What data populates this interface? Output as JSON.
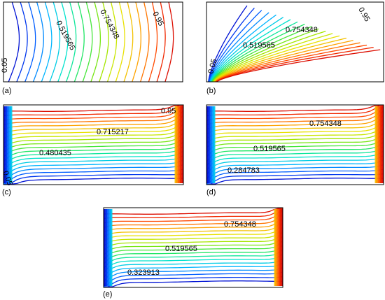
{
  "figure": {
    "panels": [
      {
        "id": "a",
        "caption": "(a)",
        "contour_labels": [
          {
            "text": "0.05",
            "rotate": true
          },
          {
            "text": "0.519565",
            "rotate": true
          },
          {
            "text": "0.754348",
            "rotate": true
          },
          {
            "text": "0.95",
            "rotate": true
          }
        ]
      },
      {
        "id": "b",
        "caption": "(b)",
        "contour_labels": [
          {
            "text": "0.05",
            "rotate": true
          },
          {
            "text": "0.519565",
            "rotate": false
          },
          {
            "text": "0.754348",
            "rotate": false
          },
          {
            "text": "0.95",
            "rotate": true
          }
        ]
      },
      {
        "id": "c",
        "caption": "(c)",
        "contour_labels": [
          {
            "text": "0.05",
            "rotate": true
          },
          {
            "text": "0.480435",
            "rotate": false
          },
          {
            "text": "0.715217",
            "rotate": false
          },
          {
            "text": "0.95",
            "rotate": false
          }
        ]
      },
      {
        "id": "d",
        "caption": "(d)",
        "contour_labels": [
          {
            "text": "0.284783",
            "rotate": false
          },
          {
            "text": "0.519565",
            "rotate": false
          },
          {
            "text": "0.754348",
            "rotate": false
          }
        ]
      },
      {
        "id": "e",
        "caption": "(e)",
        "contour_labels": [
          {
            "text": "0.323913",
            "rotate": false
          },
          {
            "text": "0.519565",
            "rotate": false
          },
          {
            "text": "0.754348",
            "rotate": false
          }
        ]
      }
    ],
    "colormap": [
      "#0000c8",
      "#0050ff",
      "#00b4ff",
      "#00e6c8",
      "#28e650",
      "#96e600",
      "#e6e600",
      "#ffa000",
      "#ff3c00",
      "#d20000"
    ],
    "contour_count": 20
  }
}
